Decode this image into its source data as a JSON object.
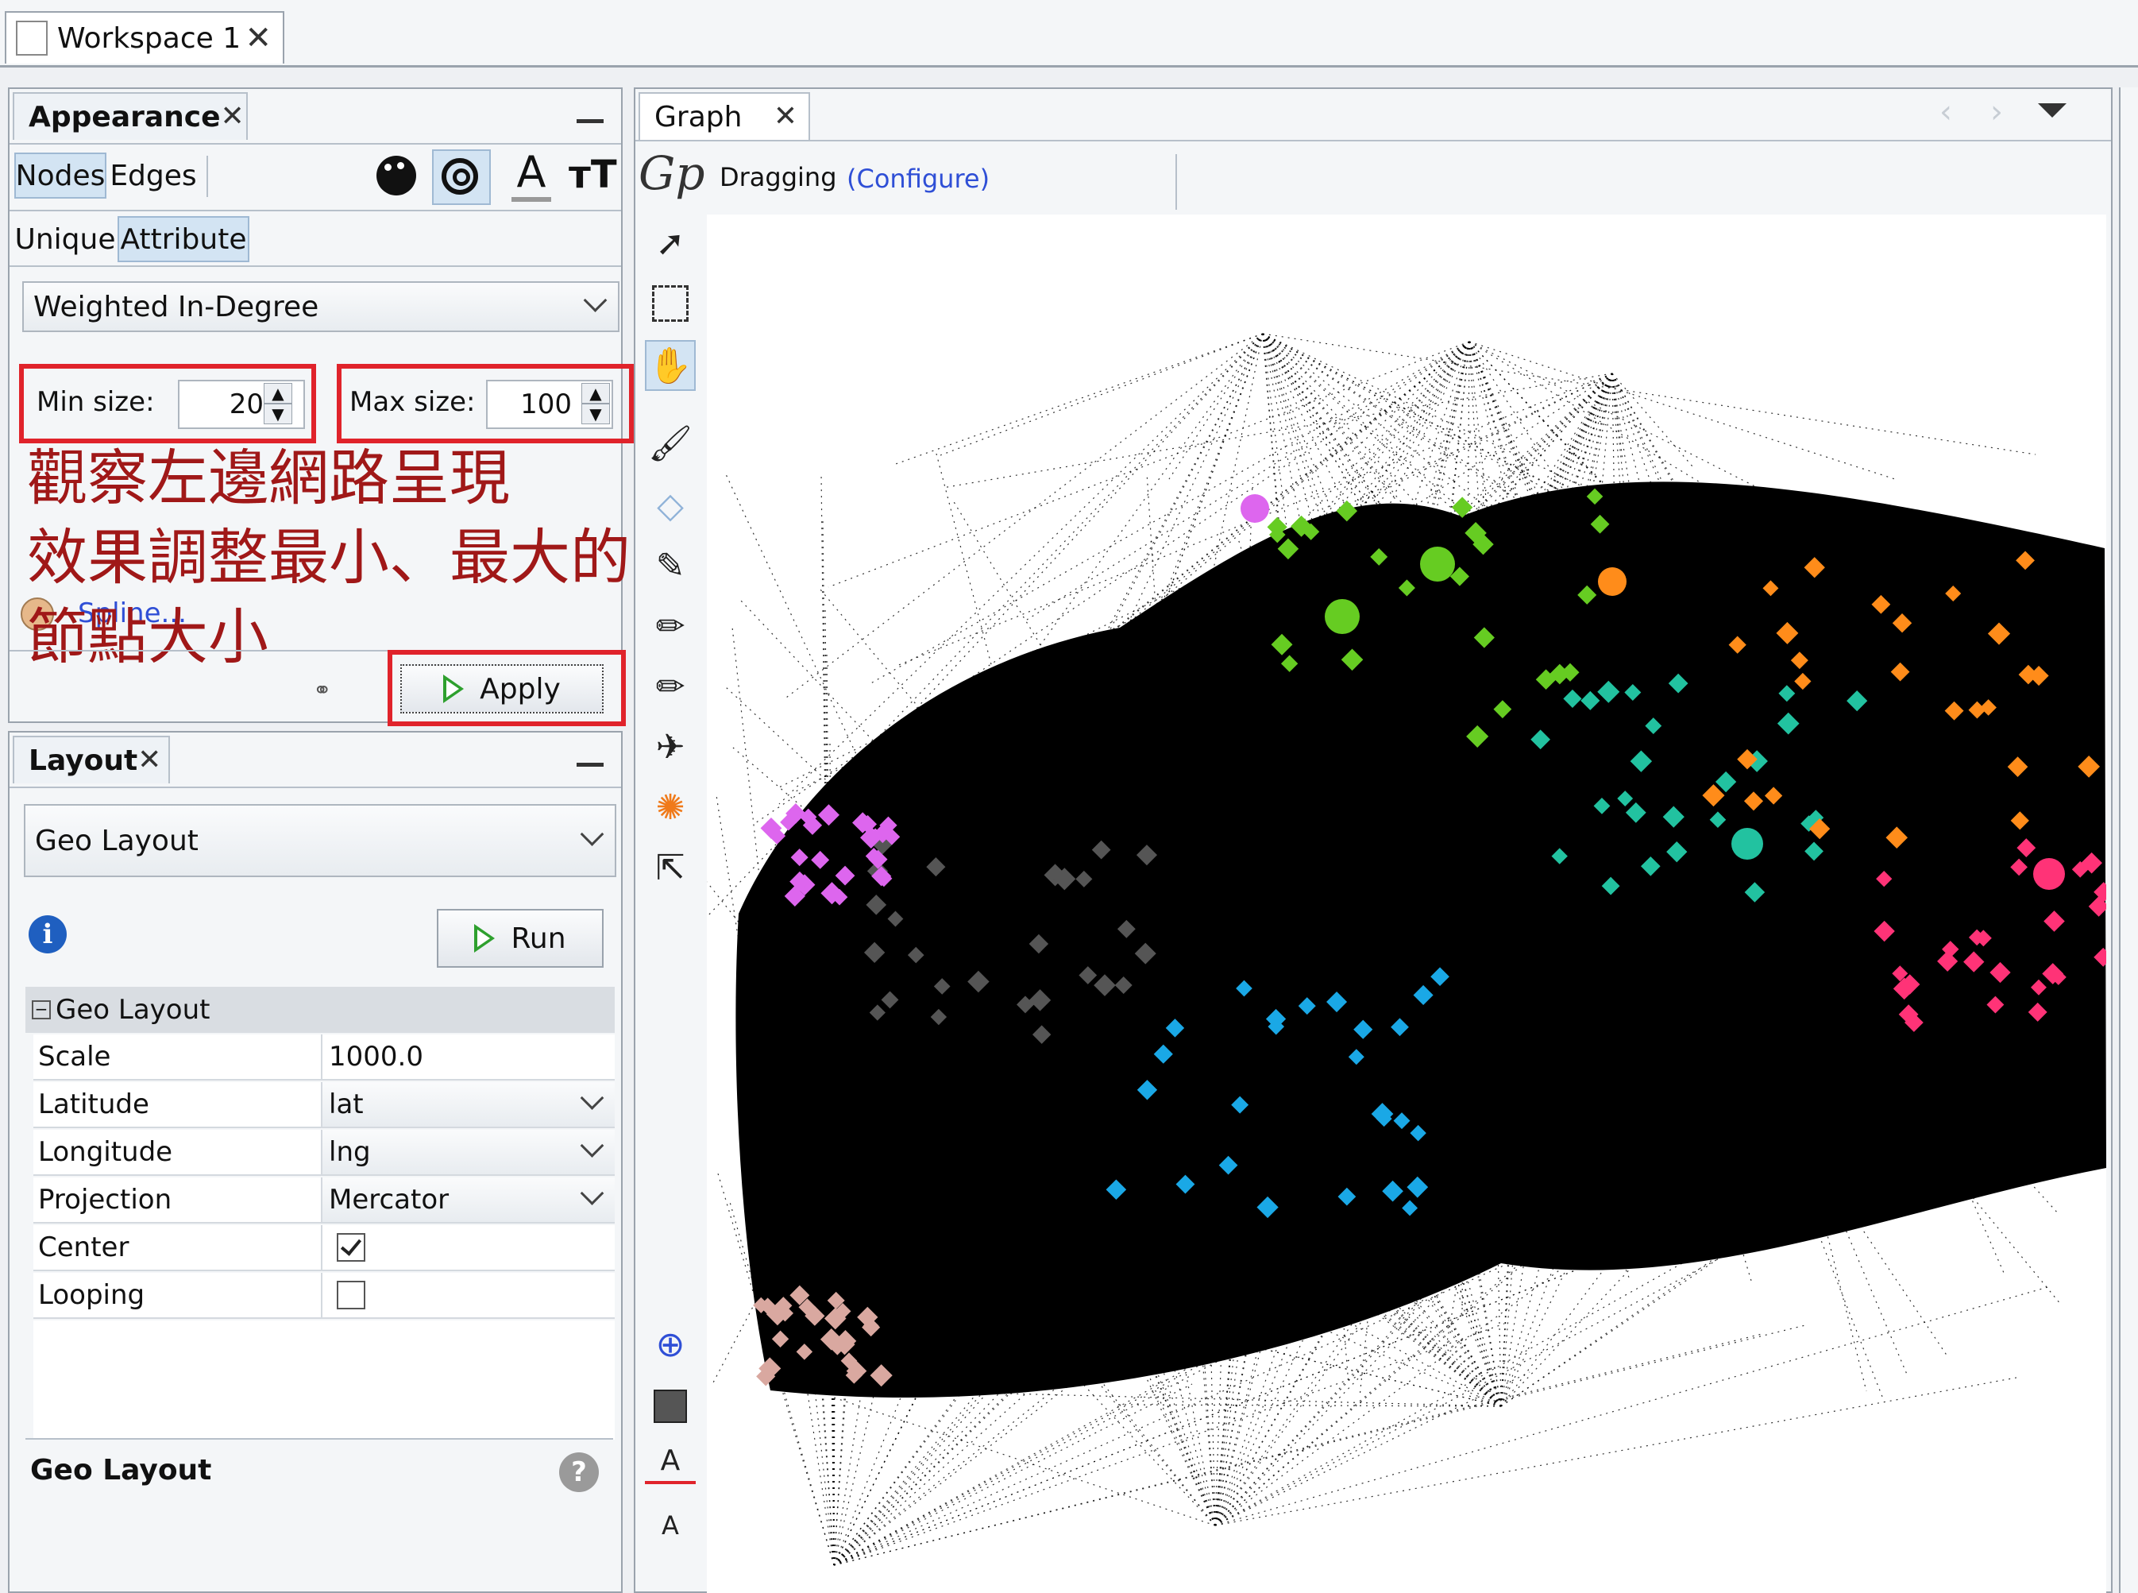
{
  "workspace_tab": {
    "label": "Workspace 1"
  },
  "appearance": {
    "title": "Appearance",
    "nodes_label": "Nodes",
    "edges_label": "Edges",
    "unique_label": "Unique",
    "attribute_label": "Attribute",
    "attribute_select": "Weighted In-Degree",
    "min_size_label": "Min size:",
    "min_size_value": "20",
    "max_size_label": "Max size:",
    "max_size_value": "100",
    "annotation_lines": [
      "觀察左邊網路呈現",
      "效果調整最小、最大的",
      "節點大小"
    ],
    "spline_label": "Spline...",
    "apply_label": "Apply"
  },
  "layout": {
    "title": "Layout",
    "algorithm_select": "Geo Layout",
    "run_label": "Run",
    "section_title": "Geo Layout",
    "properties": [
      {
        "name": "Scale",
        "value": "1000.0"
      },
      {
        "name": "Latitude",
        "value": "lat"
      },
      {
        "name": "Longitude",
        "value": "lng"
      },
      {
        "name": "Projection",
        "value": "Mercator"
      },
      {
        "name": "Center",
        "checked": true
      },
      {
        "name": "Looping",
        "checked": false
      }
    ],
    "footer_title": "Geo Layout"
  },
  "graph": {
    "title": "Graph",
    "mode_label": "Dragging",
    "configure_label": "(Configure)"
  },
  "colors": {
    "annotation_red": "#e0232b",
    "annotation_text": "#a01818",
    "selection_blue": "#d3e4f3"
  }
}
